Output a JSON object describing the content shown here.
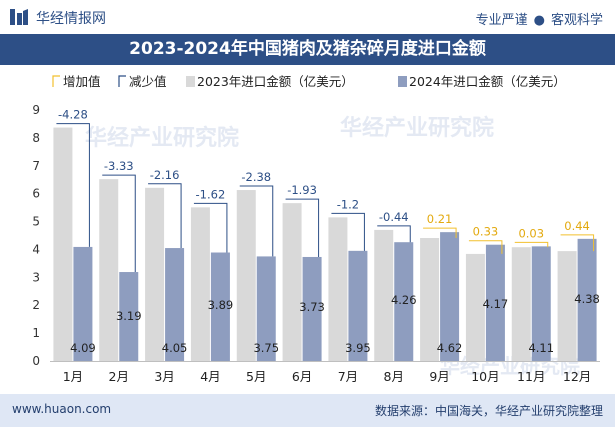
{
  "header": {
    "brand": "华经情报网",
    "tagline_left": "专业严谨",
    "tagline_sep": "●",
    "tagline_right": "客观科学"
  },
  "title": "2023-2024年中国猪肉及猪杂碎月度进口金额",
  "footer": {
    "website": "www.huaon.com",
    "source": "数据来源：中国海关，华经产业研究院整理"
  },
  "watermark": "华经产业研究院",
  "colors": {
    "bar2023": "#d9d9d9",
    "bar2024": "#8e9dbf",
    "increase": "#f2c02f",
    "decrease": "#2d4f86",
    "header_bg": "#2d4f86",
    "footer_bg": "#dfe7f5"
  },
  "chart_data": {
    "type": "bar",
    "title": "2023-2024年中国猪肉及猪杂碎月度进口金额",
    "categories": [
      "1月",
      "2月",
      "3月",
      "4月",
      "5月",
      "6月",
      "7月",
      "8月",
      "9月",
      "10月",
      "11月",
      "12月"
    ],
    "series": [
      {
        "name": "2023年进口金额（亿美元）",
        "values": [
          8.37,
          6.52,
          6.21,
          5.51,
          6.13,
          5.66,
          5.15,
          4.7,
          4.41,
          3.84,
          4.08,
          3.94
        ]
      },
      {
        "name": "2024年进口金额（亿美元）",
        "values": [
          4.09,
          3.19,
          4.05,
          3.89,
          3.75,
          3.73,
          3.95,
          4.26,
          4.62,
          4.17,
          4.11,
          4.38
        ]
      }
    ],
    "changes": [
      -4.28,
      -3.33,
      -2.16,
      -1.62,
      -2.38,
      -1.93,
      -1.2,
      -0.44,
      0.21,
      0.33,
      0.03,
      0.44
    ],
    "change_labels": [
      "-4.28",
      "-3.33",
      "-2.16",
      "-1.62",
      "-2.38",
      "-1.93",
      "-1.2",
      "-0.44",
      "0.21",
      "0.33",
      "0.03",
      "0.44"
    ],
    "value_labels_2024": [
      "4.09",
      "3.19",
      "4.05",
      "3.89",
      "3.75",
      "3.73",
      "3.95",
      "4.26",
      "4.62",
      "4.17",
      "4.11",
      "4.38"
    ],
    "legend": [
      "增加值",
      "减少值",
      "2023年进口金额（亿美元）",
      "2024年进口金额（亿美元）"
    ],
    "legend_position": "top",
    "yticks": [
      "0",
      "1",
      "2",
      "3",
      "4",
      "5",
      "6",
      "7",
      "8",
      "9"
    ],
    "ylim": [
      0,
      9
    ],
    "grid": false
  }
}
